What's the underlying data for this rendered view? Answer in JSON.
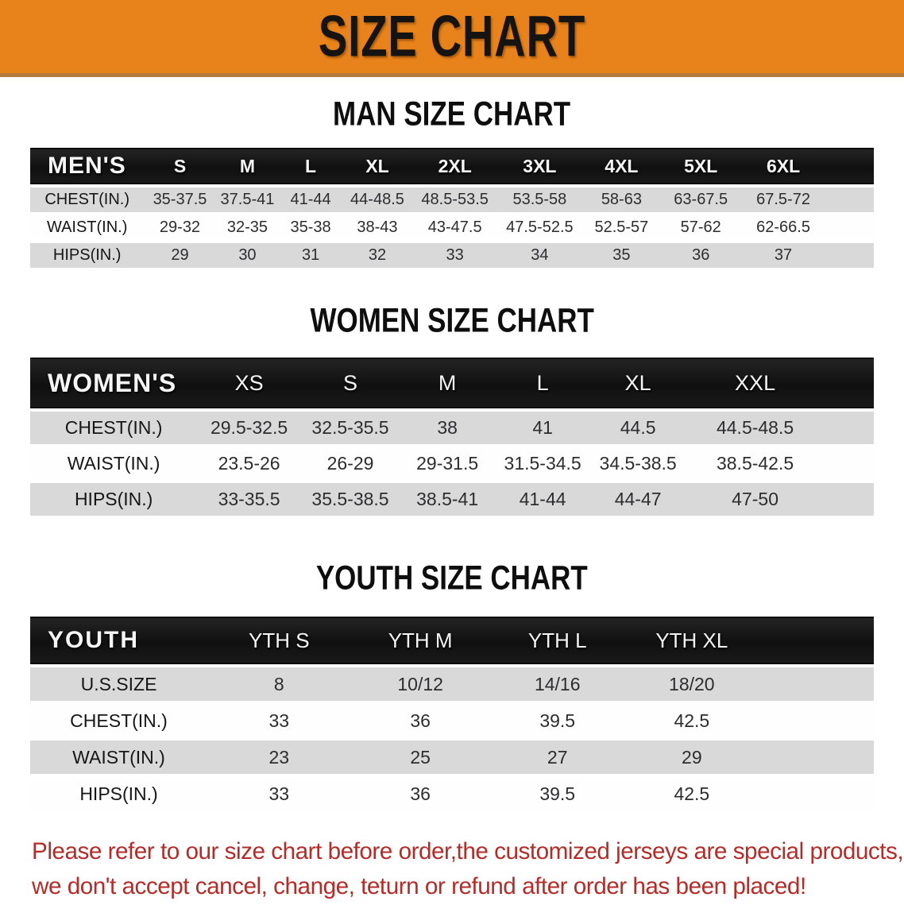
{
  "banner": {
    "title": "SIZE CHART"
  },
  "sections": [
    {
      "heading": "MAN SIZE CHART",
      "table": {
        "corner": "MEN'S",
        "sizes": [
          "S",
          "M",
          "L",
          "XL",
          "2XL",
          "3XL",
          "4XL",
          "5XL",
          "6XL"
        ],
        "rows": [
          {
            "label": "CHEST(IN.)",
            "values": [
              "35-37.5",
              "37.5-41",
              "41-44",
              "44-48.5",
              "48.5-53.5",
              "53.5-58",
              "58-63",
              "63-67.5",
              "67.5-72"
            ]
          },
          {
            "label": "WAIST(IN.)",
            "values": [
              "29-32",
              "32-35",
              "35-38",
              "38-43",
              "43-47.5",
              "47.5-52.5",
              "52.5-57",
              "57-62",
              "62-66.5"
            ]
          },
          {
            "label": "HIPS(IN.)",
            "values": [
              "29",
              "30",
              "31",
              "32",
              "33",
              "34",
              "35",
              "36",
              "37"
            ]
          }
        ]
      }
    },
    {
      "heading": "WOMEN SIZE CHART",
      "table": {
        "corner": "WOMEN'S",
        "sizes": [
          "XS",
          "S",
          "M",
          "L",
          "XL",
          "XXL"
        ],
        "rows": [
          {
            "label": "CHEST(IN.)",
            "values": [
              "29.5-32.5",
              "32.5-35.5",
              "38",
              "41",
              "44.5",
              "44.5-48.5"
            ]
          },
          {
            "label": "WAIST(IN.)",
            "values": [
              "23.5-26",
              "26-29",
              "29-31.5",
              "31.5-34.5",
              "34.5-38.5",
              "38.5-42.5"
            ]
          },
          {
            "label": "HIPS(IN.)",
            "values": [
              "33-35.5",
              "35.5-38.5",
              "38.5-41",
              "41-44",
              "44-47",
              "47-50"
            ]
          }
        ]
      }
    },
    {
      "heading": "YOUTH SIZE CHART",
      "table": {
        "corner": "YOUTH",
        "sizes": [
          "YTH S",
          "YTH M",
          "YTH L",
          "YTH XL"
        ],
        "rows": [
          {
            "label": "U.S.SIZE",
            "values": [
              "8",
              "10/12",
              "14/16",
              "18/20"
            ]
          },
          {
            "label": "CHEST(IN.)",
            "values": [
              "33",
              "36",
              "39.5",
              "42.5"
            ]
          },
          {
            "label": "WAIST(IN.)",
            "values": [
              "23",
              "25",
              "27",
              "29"
            ]
          },
          {
            "label": "HIPS(IN.)",
            "values": [
              "33",
              "36",
              "39.5",
              "42.5"
            ]
          }
        ]
      }
    }
  ],
  "footer": {
    "line1": "Please refer to our size chart before order,the customized jerseys are special products,",
    "line2": "we don't accept cancel, change, teturn or refund after order has been placed!"
  },
  "colors": {
    "banner_bg": "#e8831c",
    "header_bar": "#141414",
    "row_gray": "#d9d9d9",
    "footer_red": "#b32c28"
  }
}
